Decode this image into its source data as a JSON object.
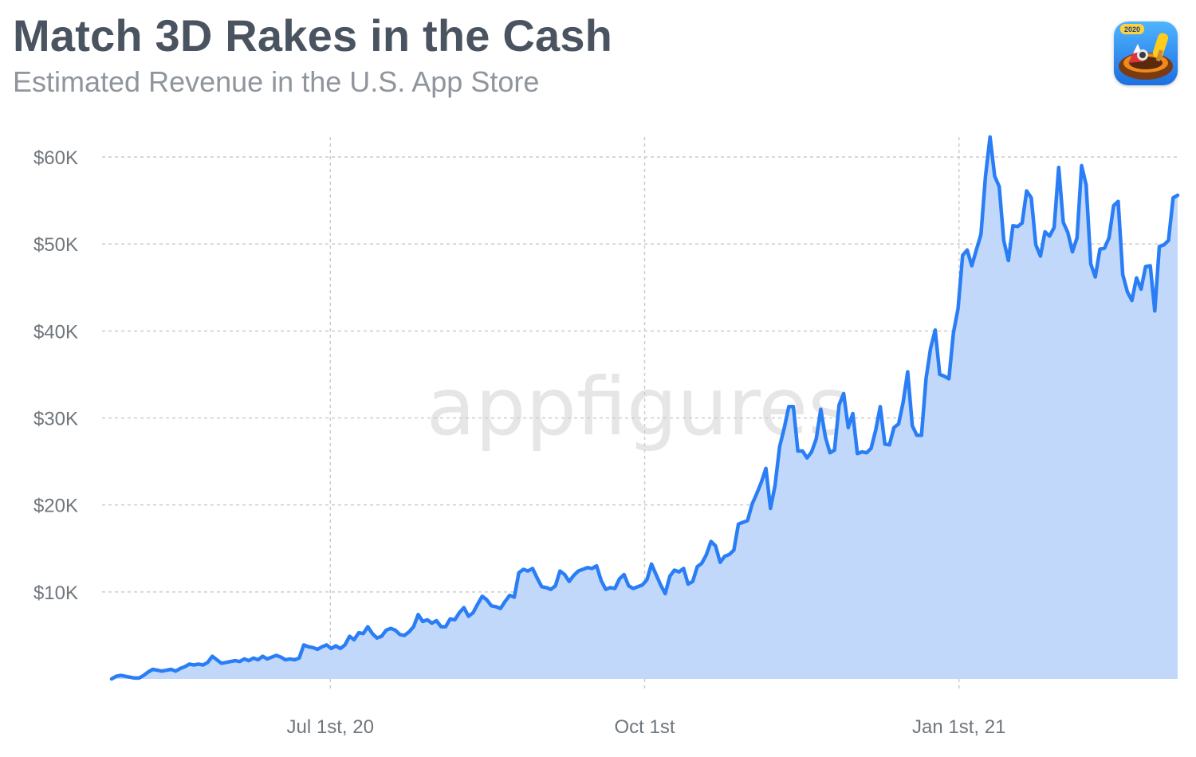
{
  "header": {
    "title": "Match 3D Rakes in the Cash",
    "subtitle": "Estimated Revenue in the U.S. App Store",
    "app_icon": "match-3d-app-icon",
    "app_icon_badge": "2020"
  },
  "watermark": "appfigures",
  "colors": {
    "line": "#2a7ef5",
    "area": "#c2d8fb",
    "grid": "#cccccc",
    "title": "#4a5460",
    "subtitle": "#8e959c"
  },
  "chart_data": {
    "type": "area",
    "title": "Match 3D Rakes in the Cash",
    "subtitle": "Estimated Revenue in the U.S. App Store",
    "xlabel": "",
    "ylabel": "",
    "x_start": "2020-04-28",
    "x_end": "2021-03-06",
    "x_ticks": [
      {
        "date": "2020-07-01",
        "label": "Jul 1st, 20"
      },
      {
        "date": "2020-10-01",
        "label": "Oct 1st"
      },
      {
        "date": "2021-01-01",
        "label": "Jan 1st, 21"
      }
    ],
    "y_ticks": [
      {
        "value": 10000,
        "label": "$10K"
      },
      {
        "value": 20000,
        "label": "$20K"
      },
      {
        "value": 30000,
        "label": "$30K"
      },
      {
        "value": 40000,
        "label": "$40K"
      },
      {
        "value": 50000,
        "label": "$50K"
      },
      {
        "value": 60000,
        "label": "$60K"
      }
    ],
    "ylim": [
      0,
      60000
    ],
    "grid": true,
    "legend": "none",
    "series": [
      {
        "values": [
          0,
          300,
          400,
          300,
          200,
          100,
          100,
          400,
          800,
          1100,
          1000,
          900,
          1000,
          1100,
          900,
          1200,
          1400,
          1700,
          1600,
          1700,
          1600,
          1900,
          2600,
          2200,
          1800,
          1900,
          2000,
          2100,
          2000,
          2300,
          2100,
          2400,
          2200,
          2600,
          2300,
          2500,
          2700,
          2500,
          2200,
          2300,
          2200,
          2400,
          3900,
          3700,
          3600,
          3400,
          3700,
          3900,
          3500,
          3800,
          3500,
          3900,
          4900,
          4500,
          5300,
          5200,
          6000,
          5200,
          4700,
          4900,
          5600,
          5800,
          5600,
          5100,
          5000,
          5400,
          6000,
          7400,
          6600,
          6800,
          6400,
          6700,
          6000,
          6000,
          6900,
          6800,
          7600,
          8200,
          7200,
          7600,
          8600,
          9500,
          9100,
          8400,
          8300,
          8100,
          8900,
          9600,
          9400,
          12200,
          12600,
          12400,
          12700,
          11600,
          10600,
          10500,
          10300,
          10700,
          12400,
          12000,
          11200,
          11900,
          12400,
          12600,
          12800,
          12700,
          13000,
          11300,
          10300,
          10500,
          10400,
          11500,
          12000,
          10700,
          10400,
          10600,
          10800,
          11400,
          13200,
          12000,
          10800,
          9800,
          11800,
          12500,
          12300,
          12700,
          10900,
          11200,
          12900,
          13300,
          14300,
          15800,
          15300,
          13400,
          14100,
          14300,
          14800,
          17800,
          18000,
          18200,
          20100,
          21300,
          22600,
          24200,
          19600,
          22200,
          26700,
          28800,
          31300,
          31300,
          26200,
          26200,
          25400,
          26100,
          27600,
          31000,
          27800,
          26000,
          26300,
          31500,
          32800,
          28900,
          30500,
          25900,
          26100,
          26000,
          26500,
          28600,
          31300,
          27000,
          26900,
          28900,
          29300,
          31800,
          35300,
          29100,
          28000,
          28000,
          34500,
          38000,
          40100,
          35000,
          34800,
          34500,
          39800,
          42600,
          48700,
          49300,
          47500,
          49300,
          51100,
          57800,
          62300,
          57800,
          56600,
          50400,
          48100,
          52100,
          52000,
          52400,
          56100,
          55300,
          49900,
          48600,
          51400,
          50900,
          51900,
          58800,
          52500,
          51300,
          49100,
          50700,
          59000,
          56800,
          47700,
          46200,
          49400,
          49500,
          50700,
          54400,
          54900,
          46500,
          44500,
          43500,
          46100,
          44800,
          47400,
          47500,
          42300,
          49700,
          49900,
          50400,
          55300,
          55600
        ]
      }
    ]
  }
}
